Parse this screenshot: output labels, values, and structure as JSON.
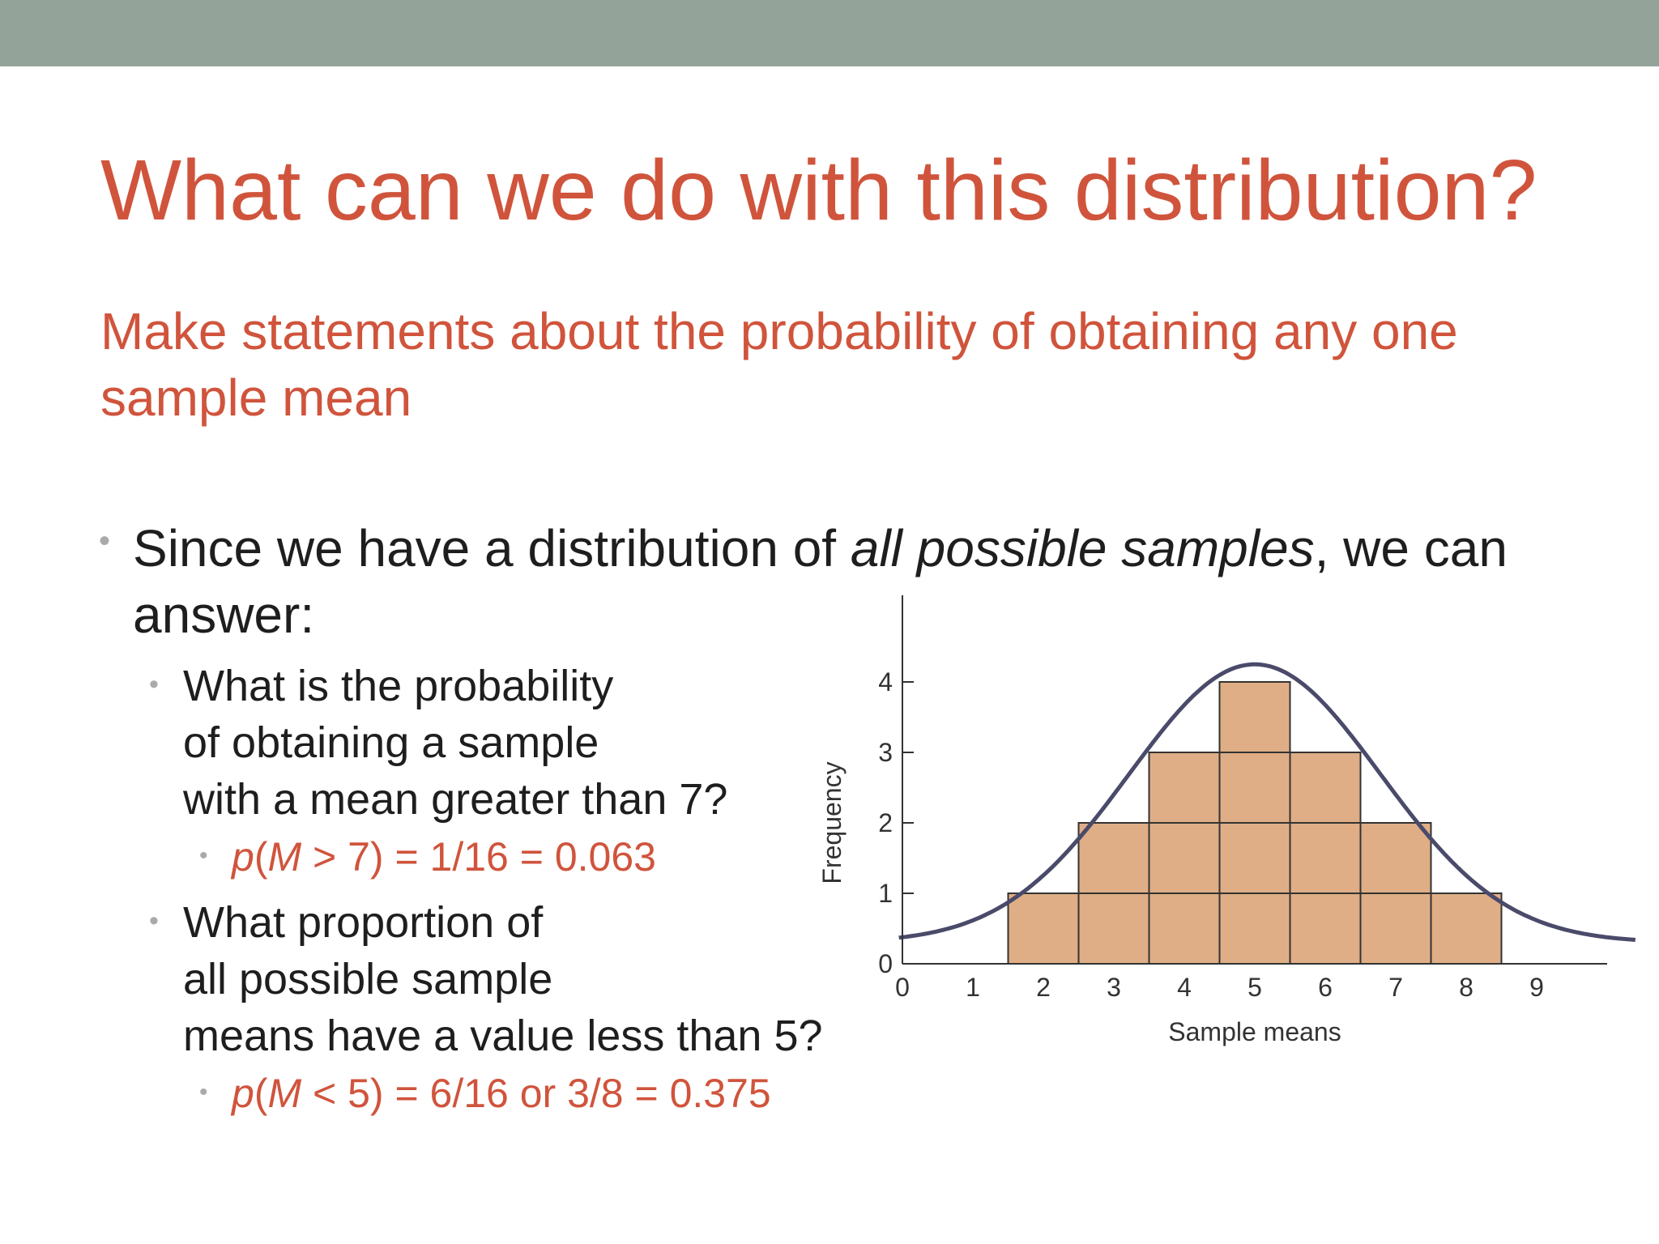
{
  "slide": {
    "title": "What can we do with this distribution?",
    "subtitle": "Make statements about the probability of obtaining any one sample mean",
    "bullet1": {
      "pre": "Since we have a distribution of ",
      "em": "all possible samples",
      "post": ", we can answer:"
    },
    "q1": {
      "lines": [
        "What is the probability",
        "of obtaining a sample",
        "with a mean greater than 7?"
      ]
    },
    "a1": {
      "p": "p",
      "open": "(",
      "m": "M",
      "rest": " > 7) = 1/16 = 0.063"
    },
    "q2": {
      "lines": [
        "What proportion of",
        "all possible sample",
        "means have a value less than 5?"
      ]
    },
    "a2": {
      "p": "p",
      "open": "(",
      "m": "M",
      "rest": " < 5) = 6/16 or 3/8 = 0.375"
    },
    "colors": {
      "accent": "#d0543c",
      "bar": "#dfae86",
      "curve": "#4a4a6a"
    }
  },
  "chart_data": {
    "type": "bar",
    "x_ticks": [
      "0",
      "1",
      "2",
      "3",
      "4",
      "5",
      "6",
      "7",
      "8",
      "9"
    ],
    "y_ticks": [
      "0",
      "1",
      "2",
      "3",
      "4"
    ],
    "categories": [
      2,
      3,
      4,
      5,
      6,
      7,
      8
    ],
    "values": [
      1,
      2,
      3,
      4,
      3,
      2,
      1
    ],
    "xlabel": "Sample means",
    "ylabel": "Frequency",
    "xlim": [
      0,
      10
    ],
    "ylim": [
      0,
      5
    ],
    "overlay": "normal-curve",
    "grid": false
  }
}
